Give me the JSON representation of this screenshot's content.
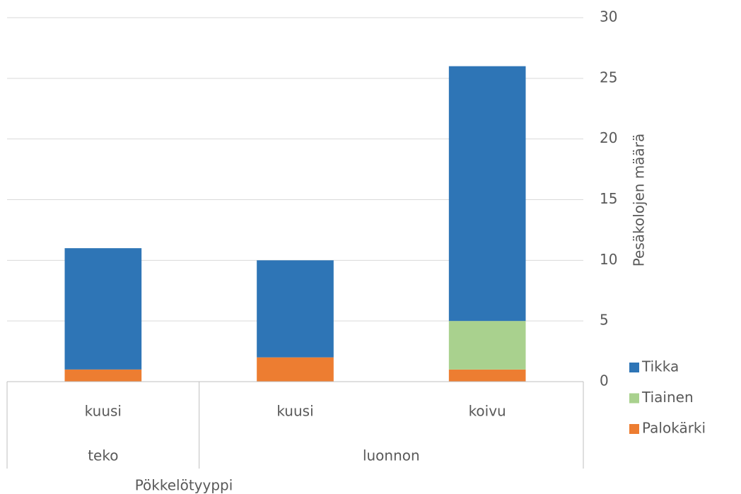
{
  "chart_data": {
    "type": "stacked_bar",
    "x_label": "Pökkelötyyppi",
    "y_label": "Pesäkolojen määrä",
    "groups": [
      {
        "name": "teko",
        "categories": [
          "kuusi"
        ]
      },
      {
        "name": "luonnon",
        "categories": [
          "kuusi",
          "koivu"
        ]
      }
    ],
    "series": [
      {
        "name": "Palokärki",
        "color": "#ed7d31",
        "values": [
          1,
          2,
          1
        ]
      },
      {
        "name": "Tiainen",
        "color": "#a9d18e",
        "values": [
          0,
          0,
          4
        ]
      },
      {
        "name": "Tikka",
        "color": "#2e75b6",
        "values": [
          10,
          8,
          21
        ]
      }
    ],
    "ylim": [
      0,
      30
    ],
    "yticks": [
      0,
      5,
      10,
      15,
      20,
      25,
      30
    ],
    "grid": true,
    "y_axis_side": "right",
    "legend": "right"
  }
}
